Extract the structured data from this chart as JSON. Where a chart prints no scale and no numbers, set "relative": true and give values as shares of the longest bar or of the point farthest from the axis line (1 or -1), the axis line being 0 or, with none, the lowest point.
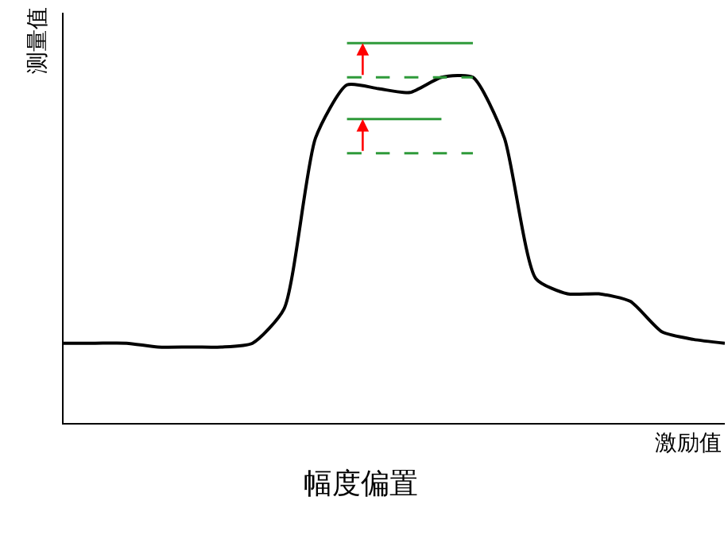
{
  "chart_data": {
    "type": "line",
    "relative": true,
    "xlabel": "激励值",
    "ylabel": "测量值",
    "annotations": [
      "幅度偏置"
    ],
    "legend": false,
    "marker": "none",
    "categories": [
      null,
      null,
      null,
      null,
      null,
      null,
      null,
      null,
      null,
      null,
      null,
      null,
      null,
      null,
      null,
      null,
      null,
      null,
      null,
      null,
      null,
      null
    ],
    "series": [
      {
        "color": "#000000",
        "line_style": "solid",
        "values": [
          0.21,
          0.21,
          0.21,
          0.2,
          0.2,
          0.2,
          0.21,
          0.3,
          0.75,
          0.89,
          0.88,
          0.87,
          0.91,
          0.91,
          0.75,
          0.38,
          0.34,
          0.34,
          0.32,
          0.24,
          0.22,
          0.21
        ]
      },
      {
        "color": "#2e9a3a",
        "line_style": "dashed",
        "values": [
          null,
          null,
          null,
          null,
          null,
          null,
          null,
          null,
          null,
          0.91,
          0.91,
          0.91,
          0.91,
          0.91,
          null,
          null,
          null,
          null,
          null,
          null,
          null,
          null
        ]
      },
      {
        "color": "#2e9a3a",
        "line_style": "solid",
        "values": [
          null,
          null,
          null,
          null,
          null,
          null,
          null,
          null,
          null,
          1.0,
          1.0,
          1.0,
          1.0,
          1.0,
          null,
          null,
          null,
          null,
          null,
          null,
          null,
          null
        ]
      },
      {
        "color": "#2e9a3a",
        "line_style": "dashed",
        "values": [
          null,
          null,
          null,
          null,
          null,
          null,
          null,
          null,
          null,
          0.71,
          0.71,
          0.71,
          0.71,
          0.71,
          null,
          null,
          null,
          null,
          null,
          null,
          null,
          null
        ]
      },
      {
        "color": "#2e9a3a",
        "line_style": "solid",
        "values": [
          null,
          null,
          null,
          null,
          null,
          null,
          null,
          null,
          null,
          0.8,
          0.8,
          0.8,
          0.8,
          null,
          null,
          null,
          null,
          null,
          null,
          null,
          null,
          null
        ]
      }
    ]
  }
}
